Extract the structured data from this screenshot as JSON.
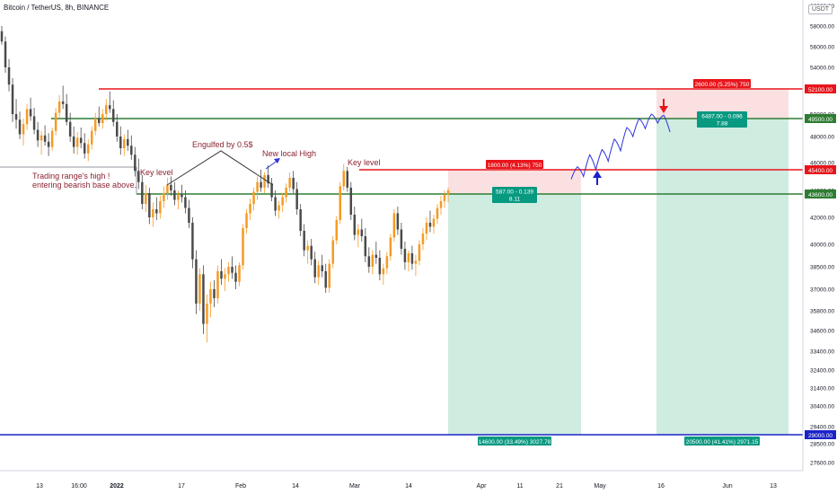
{
  "header": {
    "symbol_title": "Bitcoin / TetherUS, 8h, BINANCE",
    "currency_button": "USDT",
    "corner_tick": "60000.00"
  },
  "colors": {
    "up_candle": "#f59a23",
    "down_candle": "#4a4a4a",
    "resistance_line": "#e8151b",
    "support_line": "#2e7d32",
    "bottom_line": "#1a23c9",
    "target_zone": "#a8dcc8",
    "stop_zone": "#f7c6c8",
    "label_green": "#089981",
    "label_red": "#e8151b",
    "annotation_text": "#8b2232",
    "projection": "#2c34d9",
    "arrow_up": "#1a23c9",
    "arrow_down": "#e8151b"
  },
  "chart_data": {
    "type": "candlestick",
    "timeframe": "8h",
    "ylim": [
      26500,
      60000
    ],
    "y_ticks": [
      "58000.00",
      "56000.00",
      "54000.00",
      "52000.00",
      "50000.00",
      "48000.00",
      "46000.00",
      "44000.00",
      "42000.00",
      "40000.00",
      "38500.00",
      "37000.00",
      "35800.00",
      "34600.00",
      "33400.00",
      "32400.00",
      "31400.00",
      "30400.00",
      "29400.00",
      "28500.00",
      "27600.00"
    ],
    "x_ticks": [
      "13",
      "16:00",
      "2022",
      "17",
      "Feb",
      "14",
      "Mar",
      "14",
      "Apr",
      "11",
      "21",
      "May",
      "16",
      "Jun",
      "13"
    ],
    "price_levels": [
      {
        "label": "52100.00",
        "kind": "resistance"
      },
      {
        "label": "49500.00",
        "kind": "support"
      },
      {
        "label": "45400.00",
        "kind": "resistance"
      },
      {
        "label": "43600.00",
        "kind": "support"
      },
      {
        "label": "29000.00",
        "kind": "bottom"
      }
    ],
    "positions": [
      {
        "name": "position-1",
        "entry": 43600,
        "stop": 45400,
        "target": 29000,
        "risk_label": "1800.00 (4.13%) 750",
        "pnl_label_line1": "587.00 - 0.139",
        "pnl_label_line2": "8.11",
        "reward_label": "14600.00 (33.49%) 3027.78"
      },
      {
        "name": "position-2",
        "entry": 49500,
        "stop": 52100,
        "target": 29000,
        "risk_label": "2600.00 (5.25%) 750",
        "pnl_label_line1": "6487.00 - 0.096",
        "pnl_label_line2": "7.88",
        "reward_label": "20500.00 (41.41%) 2971.15"
      }
    ],
    "annotations": [
      {
        "name": "trading-range-note",
        "lines": [
          "Trading range's high !",
          "entering bearish base above."
        ]
      },
      {
        "name": "key-level-left",
        "lines": [
          "Key level"
        ]
      },
      {
        "name": "engulfed-note",
        "lines": [
          "Engulfed by 0.5$"
        ]
      },
      {
        "name": "new-local-high-note",
        "lines": [
          "New local High"
        ]
      },
      {
        "name": "key-level-mar",
        "lines": [
          "Key level"
        ]
      }
    ],
    "projection_path_prices": [
      44800,
      45700,
      45000,
      46600,
      45500,
      47000,
      46100,
      47800,
      46900,
      48800,
      48000,
      49600,
      48700,
      50000,
      49200,
      49900,
      48400
    ],
    "candles_ohlc": [
      [
        57500,
        58000,
        56200,
        56500
      ],
      [
        56500,
        57000,
        53500,
        54000
      ],
      [
        54000,
        54800,
        51800,
        52400
      ],
      [
        52400,
        53000,
        49300,
        50000
      ],
      [
        50000,
        51200,
        48700,
        49500
      ],
      [
        49500,
        50200,
        47800,
        48200
      ],
      [
        48200,
        49600,
        47300,
        49100
      ],
      [
        49100,
        50800,
        48600,
        50400
      ],
      [
        50400,
        51300,
        49400,
        49800
      ],
      [
        49800,
        50500,
        48200,
        48600
      ],
      [
        48600,
        49300,
        47200,
        47700
      ],
      [
        47700,
        48500,
        46600,
        48100
      ],
      [
        48100,
        49000,
        47300,
        47600
      ],
      [
        47600,
        48300,
        46500,
        47200
      ],
      [
        47200,
        48800,
        46900,
        48500
      ],
      [
        48500,
        50500,
        48100,
        50100
      ],
      [
        50100,
        51500,
        49600,
        51000
      ],
      [
        51000,
        52300,
        50400,
        50800
      ],
      [
        50800,
        51600,
        49000,
        49300
      ],
      [
        49300,
        50100,
        47600,
        48000
      ],
      [
        48000,
        48900,
        46700,
        47200
      ],
      [
        47200,
        48400,
        46600,
        47900
      ],
      [
        47900,
        48800,
        47100,
        47500
      ],
      [
        47500,
        48300,
        46300,
        46700
      ],
      [
        46700,
        47800,
        46100,
        47400
      ],
      [
        47400,
        48900,
        47000,
        48500
      ],
      [
        48500,
        50100,
        48100,
        49600
      ],
      [
        49600,
        50600,
        48900,
        49200
      ],
      [
        49200,
        50400,
        48700,
        50000
      ],
      [
        50000,
        51200,
        49400,
        50700
      ],
      [
        50700,
        51800,
        50100,
        50400
      ],
      [
        50400,
        51100,
        48900,
        49300
      ],
      [
        49300,
        50000,
        47600,
        48000
      ],
      [
        48000,
        48900,
        46600,
        47100
      ],
      [
        47100,
        48200,
        46500,
        47800
      ],
      [
        47800,
        48600,
        46900,
        47300
      ],
      [
        47300,
        48100,
        46200,
        46600
      ],
      [
        46600,
        47200,
        45000,
        45400
      ],
      [
        45400,
        46300,
        44100,
        44600
      ],
      [
        44600,
        45100,
        42600,
        43000
      ],
      [
        43000,
        44400,
        42400,
        43800
      ],
      [
        43800,
        44200,
        41500,
        42000
      ],
      [
        42000,
        43100,
        41300,
        42600
      ],
      [
        42600,
        43500,
        41800,
        42300
      ],
      [
        42300,
        43600,
        41900,
        43200
      ],
      [
        43200,
        44300,
        42700,
        43800
      ],
      [
        43800,
        44900,
        43300,
        44400
      ],
      [
        44400,
        45000,
        43600,
        44000
      ],
      [
        44000,
        44600,
        42900,
        43300
      ],
      [
        43300,
        44000,
        42600,
        43700
      ],
      [
        43700,
        44400,
        43100,
        43500
      ],
      [
        43500,
        44000,
        42300,
        42700
      ],
      [
        42700,
        43300,
        41200,
        41600
      ],
      [
        41600,
        42000,
        38400,
        39000
      ],
      [
        39000,
        39600,
        35600,
        36200
      ],
      [
        36200,
        38400,
        35800,
        38000
      ],
      [
        38000,
        38600,
        34400,
        35000
      ],
      [
        35000,
        36700,
        33900,
        36200
      ],
      [
        36200,
        37500,
        35400,
        37000
      ],
      [
        37000,
        37600,
        36000,
        36500
      ],
      [
        36500,
        38600,
        36200,
        38200
      ],
      [
        38200,
        39000,
        37300,
        37700
      ],
      [
        37700,
        38400,
        36900,
        38000
      ],
      [
        38000,
        38800,
        37500,
        38500
      ],
      [
        38500,
        39200,
        37700,
        38100
      ],
      [
        38100,
        38600,
        37000,
        37500
      ],
      [
        37500,
        38800,
        37200,
        38600
      ],
      [
        38600,
        41500,
        38300,
        41200
      ],
      [
        41200,
        42600,
        40800,
        42300
      ],
      [
        42300,
        43400,
        41800,
        43000
      ],
      [
        43000,
        44200,
        42500,
        43900
      ],
      [
        43900,
        45000,
        43300,
        44600
      ],
      [
        44600,
        45500,
        43900,
        44200
      ],
      [
        44200,
        45300,
        43800,
        45100
      ],
      [
        45100,
        45800,
        44200,
        44500
      ],
      [
        44500,
        44900,
        43200,
        43500
      ],
      [
        43500,
        44000,
        42100,
        42500
      ],
      [
        42500,
        43200,
        41900,
        42900
      ],
      [
        42900,
        43800,
        42400,
        43500
      ],
      [
        43500,
        44500,
        43100,
        44200
      ],
      [
        44200,
        45300,
        43900,
        44900
      ],
      [
        44900,
        45400,
        43800,
        44100
      ],
      [
        44100,
        44600,
        42200,
        42600
      ],
      [
        42600,
        43000,
        40600,
        41000
      ],
      [
        41000,
        41500,
        39200,
        39600
      ],
      [
        39600,
        40300,
        38700,
        39900
      ],
      [
        39900,
        40400,
        38600,
        39000
      ],
      [
        39000,
        39500,
        37400,
        37800
      ],
      [
        37800,
        38900,
        37300,
        38600
      ],
      [
        38600,
        39300,
        37800,
        38200
      ],
      [
        38200,
        38700,
        36800,
        37100
      ],
      [
        37100,
        39000,
        36800,
        38700
      ],
      [
        38700,
        40600,
        38400,
        40300
      ],
      [
        40300,
        42100,
        40000,
        41800
      ],
      [
        41800,
        44600,
        41500,
        44300
      ],
      [
        44300,
        45900,
        44000,
        45400
      ],
      [
        45400,
        45700,
        43900,
        44200
      ],
      [
        44200,
        44600,
        41800,
        42200
      ],
      [
        42200,
        42800,
        40300,
        40700
      ],
      [
        40700,
        41500,
        39800,
        41100
      ],
      [
        41100,
        41900,
        40200,
        40600
      ],
      [
        40600,
        41200,
        38800,
        39200
      ],
      [
        39200,
        39800,
        38100,
        38500
      ],
      [
        38500,
        39600,
        38000,
        39300
      ],
      [
        39300,
        40200,
        38700,
        39100
      ],
      [
        39100,
        39600,
        37600,
        38000
      ],
      [
        38000,
        38700,
        37300,
        38400
      ],
      [
        38400,
        39500,
        38000,
        39200
      ],
      [
        39200,
        40800,
        38900,
        40500
      ],
      [
        40500,
        42600,
        40200,
        42300
      ],
      [
        42300,
        42800,
        40700,
        41100
      ],
      [
        41100,
        41600,
        39300,
        39700
      ],
      [
        39700,
        40200,
        38300,
        38800
      ],
      [
        38800,
        39600,
        38200,
        39400
      ],
      [
        39400,
        39900,
        38300,
        38700
      ],
      [
        38700,
        39300,
        37900,
        38900
      ],
      [
        38900,
        40300,
        38600,
        40000
      ],
      [
        40000,
        41200,
        39600,
        40800
      ],
      [
        40800,
        42000,
        40300,
        41600
      ],
      [
        41600,
        42500,
        40900,
        41300
      ],
      [
        41300,
        42200,
        40800,
        41900
      ],
      [
        41900,
        43000,
        41500,
        42700
      ],
      [
        42700,
        43600,
        42200,
        43200
      ],
      [
        43200,
        44000,
        42700,
        43700
      ],
      [
        43700,
        44200,
        43100,
        44000
      ]
    ]
  }
}
